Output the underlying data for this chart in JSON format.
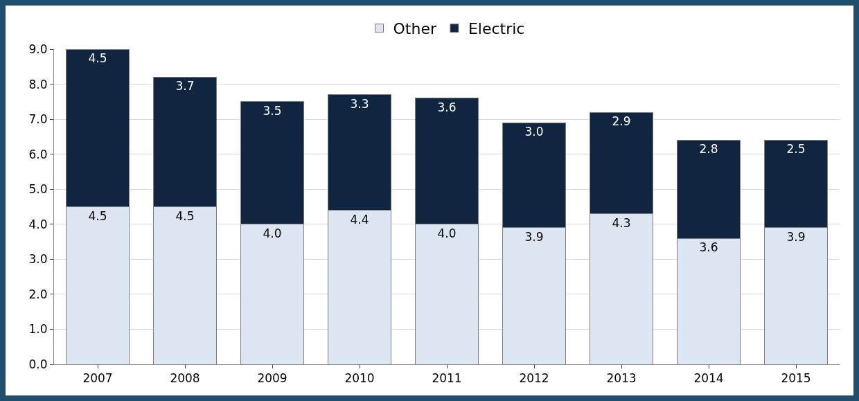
{
  "chart_data": {
    "type": "bar",
    "stacked": true,
    "categories": [
      "2007",
      "2008",
      "2009",
      "2010",
      "2011",
      "2012",
      "2013",
      "2014",
      "2015"
    ],
    "series": [
      {
        "name": "Other",
        "color": "#dce6f2",
        "values": [
          4.5,
          4.5,
          4.0,
          4.4,
          4.0,
          3.9,
          4.3,
          3.6,
          3.9
        ],
        "value_labels": [
          "4.5",
          "4.5",
          "4.0",
          "4.4",
          "4.0",
          "3.9",
          "4.3",
          "3.6",
          "3.9"
        ]
      },
      {
        "name": "Electric",
        "color": "#10253f",
        "values": [
          4.5,
          3.7,
          3.5,
          3.3,
          3.6,
          3.0,
          2.9,
          2.8,
          2.5
        ],
        "value_labels": [
          "4.5",
          "3.7",
          "3.5",
          "3.3",
          "3.6",
          "3.0",
          "2.9",
          "2.8",
          "2.5"
        ]
      }
    ],
    "ylim": [
      0,
      9
    ],
    "yticks": [
      {
        "value": 0,
        "label": "0.0"
      },
      {
        "value": 1,
        "label": "1.0"
      },
      {
        "value": 2,
        "label": "2.0"
      },
      {
        "value": 3,
        "label": "3.0"
      },
      {
        "value": 4,
        "label": "4.0"
      },
      {
        "value": 5,
        "label": "5.0"
      },
      {
        "value": 6,
        "label": "6.0"
      },
      {
        "value": 7,
        "label": "7.0"
      },
      {
        "value": 8,
        "label": "8.0"
      },
      {
        "value": 9,
        "label": "9.0"
      }
    ],
    "grid": "y",
    "legend": "top"
  }
}
